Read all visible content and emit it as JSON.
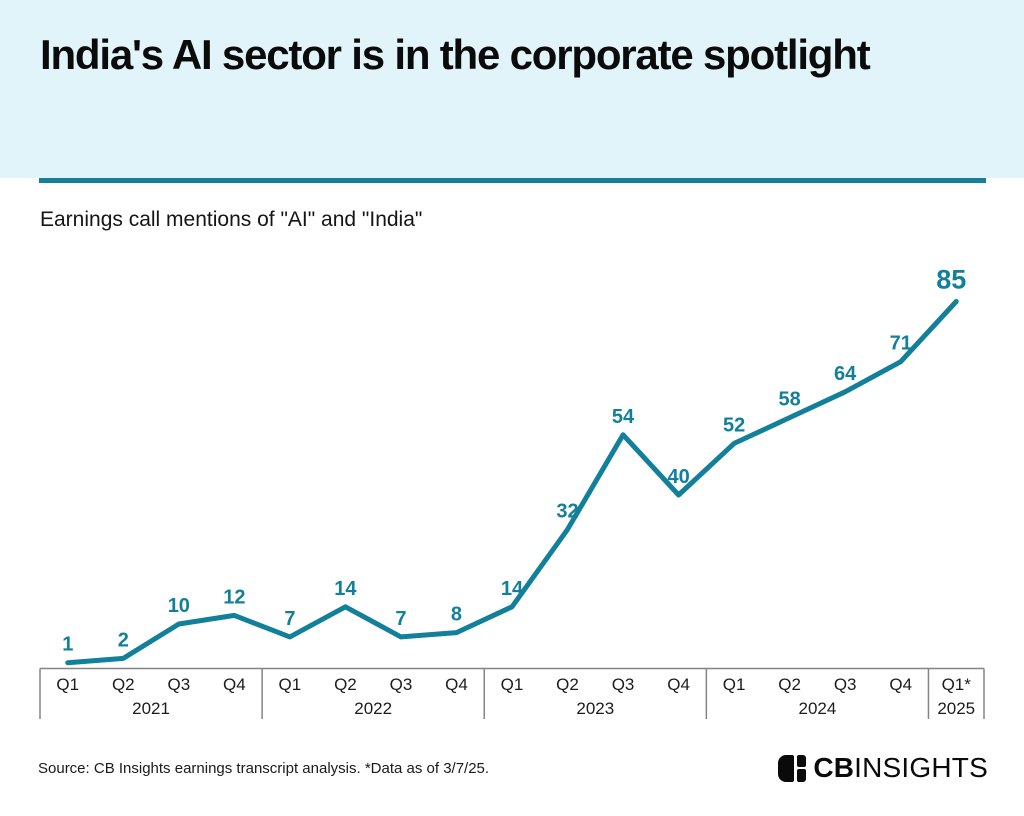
{
  "header": {
    "title": "India's AI sector is in the corporate spotlight"
  },
  "subtitle": "Earnings call mentions of \"AI\" and \"India\"",
  "footer": {
    "source": "Source: CB Insights earnings transcript analysis. *Data as of 3/7/25.",
    "logo_cb": "CB",
    "logo_insights": "INSIGHTS"
  },
  "colors": {
    "teal_accent": "#13809B",
    "divider_teal": "#157F99",
    "header_background": "#E1F4FA",
    "axis_line_gray": "#848484",
    "axis_text": "#1c1c1c"
  },
  "chart_data": {
    "type": "line",
    "title": "Earnings call mentions of \"AI\" and \"India\"",
    "x_quarter_labels": [
      "Q1",
      "Q2",
      "Q3",
      "Q4",
      "Q1",
      "Q2",
      "Q3",
      "Q4",
      "Q1",
      "Q2",
      "Q3",
      "Q4",
      "Q1",
      "Q2",
      "Q3",
      "Q4",
      "Q1*"
    ],
    "years": [
      {
        "label": "2021",
        "quarters": 4
      },
      {
        "label": "2022",
        "quarters": 4
      },
      {
        "label": "2023",
        "quarters": 4
      },
      {
        "label": "2024",
        "quarters": 4
      },
      {
        "label": "2025",
        "quarters": 1
      }
    ],
    "values": [
      1,
      2,
      10,
      12,
      7,
      14,
      7,
      8,
      14,
      32,
      54,
      40,
      52,
      58,
      64,
      71,
      85
    ],
    "ylim": [
      0,
      90
    ],
    "grid": false,
    "legend": "none",
    "line_color": "#13809B",
    "label_color": "#13809B",
    "footnote_marker": "*Data as of 3/7/25"
  }
}
